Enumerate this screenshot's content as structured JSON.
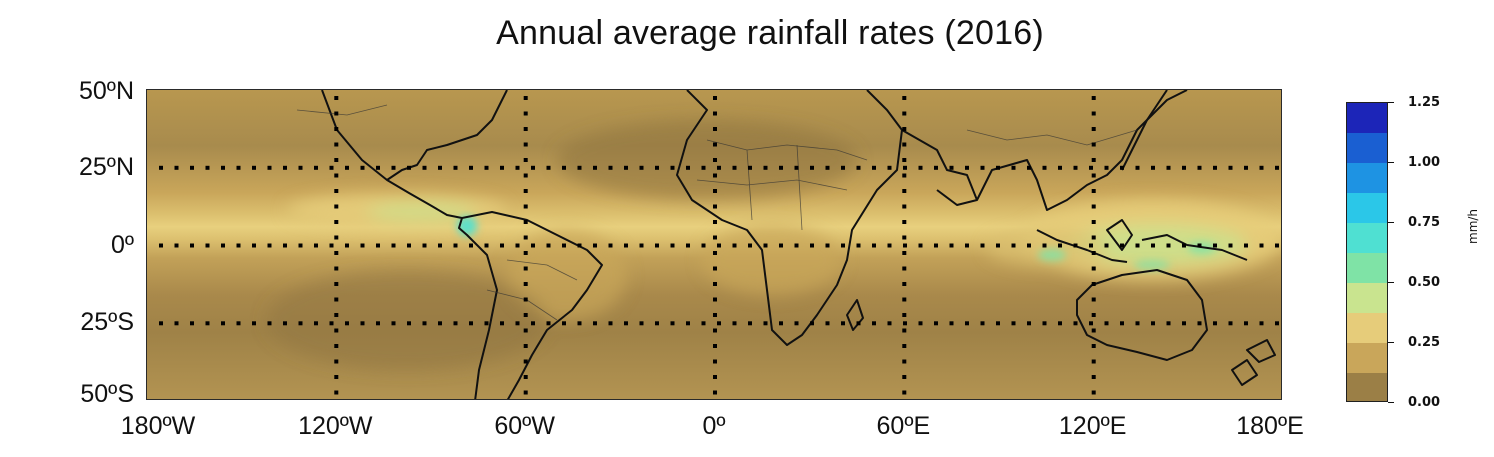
{
  "title": "Annual average rainfall rates (2016)",
  "map": {
    "lat_range": [
      -50,
      50
    ],
    "lon_range": [
      -180,
      180
    ],
    "projection": "equirectangular",
    "gridlines": "dotted",
    "y_ticks": [
      {
        "lat": 50,
        "label": "50ºN"
      },
      {
        "lat": 25,
        "label": "25ºN"
      },
      {
        "lat": 0,
        "label": "0º"
      },
      {
        "lat": -25,
        "label": "25ºS"
      },
      {
        "lat": -50,
        "label": "50ºS"
      }
    ],
    "x_ticks": [
      {
        "lon": -180,
        "label": "180ºW"
      },
      {
        "lon": -120,
        "label": "120ºW"
      },
      {
        "lon": -60,
        "label": "60ºW"
      },
      {
        "lon": 0,
        "label": "0º"
      },
      {
        "lon": 60,
        "label": "60ºE"
      },
      {
        "lon": 120,
        "label": "120ºE"
      },
      {
        "lon": 180,
        "label": "180ºE"
      }
    ]
  },
  "colorbar": {
    "unit": "mm/h",
    "ticks": [
      {
        "value": 1.25,
        "label": "1.25"
      },
      {
        "value": 1.0,
        "label": "1.00"
      },
      {
        "value": 0.75,
        "label": "0.75"
      },
      {
        "value": 0.5,
        "label": "0.50"
      },
      {
        "value": 0.25,
        "label": "0.25"
      },
      {
        "value": 0.0,
        "label": "0.00"
      }
    ],
    "bins": [
      {
        "min": 0.0,
        "max": 0.125,
        "color": "#9b7f46"
      },
      {
        "min": 0.125,
        "max": 0.25,
        "color": "#c9a65a"
      },
      {
        "min": 0.25,
        "max": 0.375,
        "color": "#e6cc7a"
      },
      {
        "min": 0.375,
        "max": 0.5,
        "color": "#c9e48f"
      },
      {
        "min": 0.5,
        "max": 0.625,
        "color": "#7fe3a6"
      },
      {
        "min": 0.625,
        "max": 0.75,
        "color": "#4fe0d2"
      },
      {
        "min": 0.75,
        "max": 0.875,
        "color": "#2bc7e8"
      },
      {
        "min": 0.875,
        "max": 1.0,
        "color": "#1e93e3"
      },
      {
        "min": 1.0,
        "max": 1.125,
        "color": "#1a5fd2"
      },
      {
        "min": 1.125,
        "max": 1.25,
        "color": "#1c25b8"
      }
    ]
  }
}
